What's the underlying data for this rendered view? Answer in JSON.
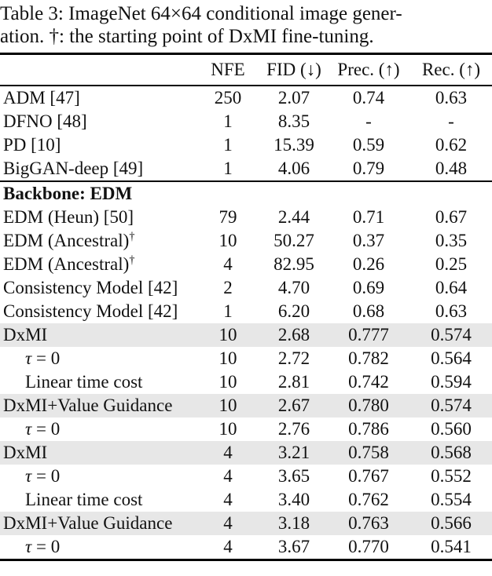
{
  "caption": {
    "line1": "Table 3: ImageNet 64×64 conditional image gener-",
    "line2": "ation. †: the starting point of DxMI fine-tuning."
  },
  "colors": {
    "row_highlight": "#e7e7e7",
    "rule": "#000000"
  },
  "table": {
    "columns": [
      "NFE",
      "FID (↓)",
      "Prec. (↑)",
      "Rec. (↑)"
    ],
    "rows": [
      {
        "label": "ADM [47]",
        "nfe": "250",
        "fid": "2.07",
        "prec": "0.74",
        "rec": "0.63"
      },
      {
        "label": "DFNO [48]",
        "nfe": "1",
        "fid": "8.35",
        "prec": "-",
        "rec": "-"
      },
      {
        "label": "PD [10]",
        "nfe": "1",
        "fid": "15.39",
        "prec": "0.59",
        "rec": "0.62"
      },
      {
        "label": "BigGAN-deep [49]",
        "nfe": "1",
        "fid": "4.06",
        "prec": "0.79",
        "rec": "0.48"
      },
      {
        "type": "section",
        "label": "Backbone: EDM",
        "nfe": "",
        "fid": "",
        "prec": "",
        "rec": ""
      },
      {
        "label": "EDM (Heun) [50]",
        "nfe": "79",
        "fid": "2.44",
        "prec": "0.71",
        "rec": "0.67"
      },
      {
        "label": "EDM (Ancestral)",
        "sup": "†",
        "nfe": "10",
        "fid": "50.27",
        "prec": "0.37",
        "rec": "0.35"
      },
      {
        "label": "EDM (Ancestral)",
        "sup": "†",
        "nfe": "4",
        "fid": "82.95",
        "prec": "0.26",
        "rec": "0.25"
      },
      {
        "label": "Consistency Model [42]",
        "nfe": "2",
        "fid": "4.70",
        "prec": "0.69",
        "rec": "0.64"
      },
      {
        "label": "Consistency Model [42]",
        "nfe": "1",
        "fid": "6.20",
        "prec": "0.68",
        "rec": "0.63"
      },
      {
        "label": "DxMI",
        "shaded": true,
        "nfe": "10",
        "fid": "2.68",
        "prec": "0.777",
        "rec": "0.574"
      },
      {
        "label_math": "τ",
        "label": " = 0",
        "indent": true,
        "nfe": "10",
        "fid": "2.72",
        "prec": "0.782",
        "rec": "0.564"
      },
      {
        "label": "Linear time cost",
        "indent": true,
        "nfe": "10",
        "fid": "2.81",
        "prec": "0.742",
        "rec": "0.594"
      },
      {
        "label": "DxMI+Value Guidance",
        "shaded": true,
        "nfe": "10",
        "fid": "2.67",
        "prec": "0.780",
        "rec": "0.574"
      },
      {
        "label_math": "τ",
        "label": " = 0",
        "indent": true,
        "nfe": "10",
        "fid": "2.76",
        "prec": "0.786",
        "rec": "0.560"
      },
      {
        "label": "DxMI",
        "shaded": true,
        "nfe": "4",
        "fid": "3.21",
        "prec": "0.758",
        "rec": "0.568"
      },
      {
        "label_math": "τ",
        "label": " = 0",
        "indent": true,
        "nfe": "4",
        "fid": "3.65",
        "prec": "0.767",
        "rec": "0.552"
      },
      {
        "label": "Linear time cost",
        "indent": true,
        "nfe": "4",
        "fid": "3.40",
        "prec": "0.762",
        "rec": "0.554"
      },
      {
        "label": "DxMI+Value Guidance",
        "shaded": true,
        "nfe": "4",
        "fid": "3.18",
        "prec": "0.763",
        "rec": "0.566"
      },
      {
        "label_math": "τ",
        "label": " = 0",
        "indent": true,
        "nfe": "4",
        "fid": "3.67",
        "prec": "0.770",
        "rec": "0.541"
      }
    ]
  }
}
